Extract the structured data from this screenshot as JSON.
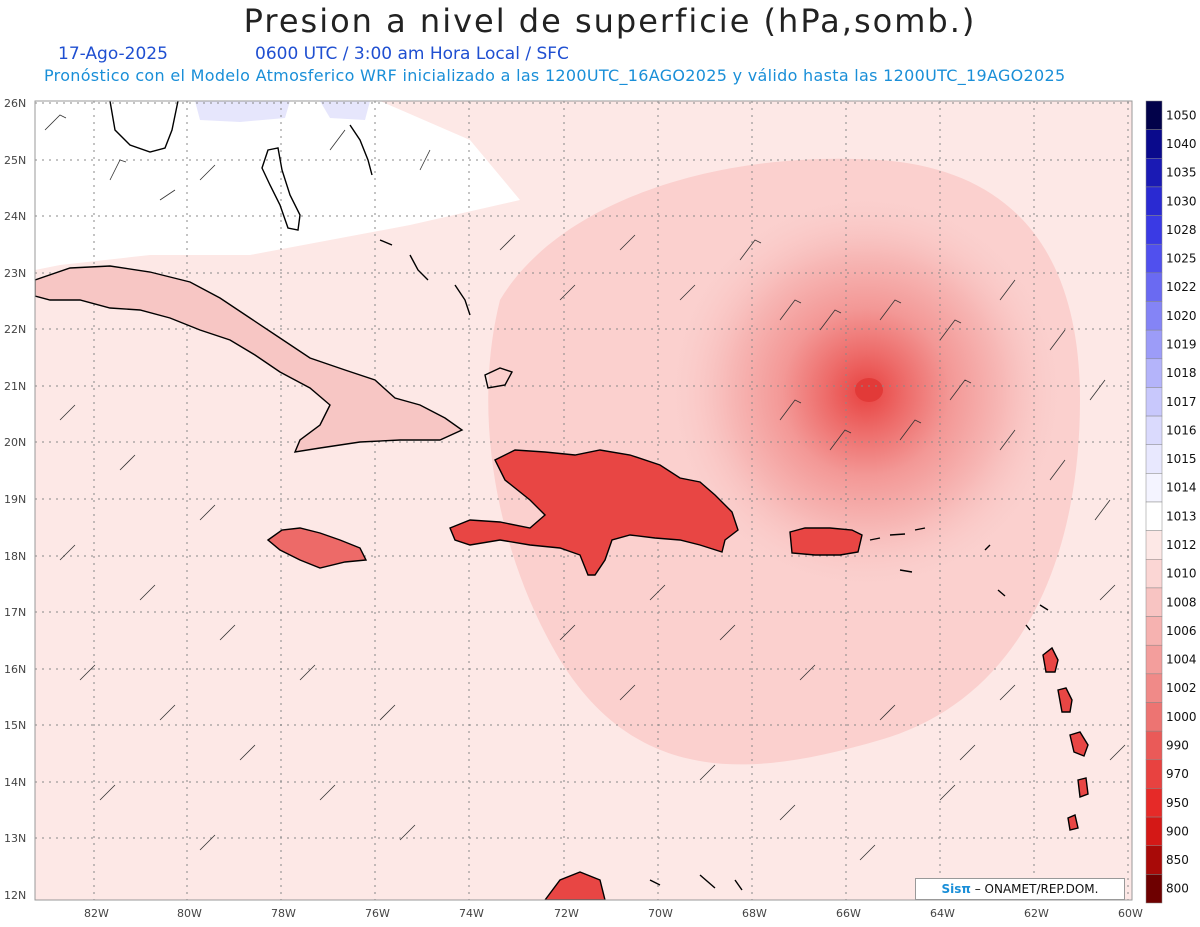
{
  "title": "Presion a nivel de superficie (hPa,somb.)",
  "date": "17-Ago-2025",
  "time_info": "0600 UTC / 3:00 am Hora Local / SFC",
  "forecast_info": "Pronóstico con el Modelo Atmosferico WRF inicializado a las 1200UTC_16AGO2025 y válido hasta las  1200UTC_19AGO2025",
  "credit": {
    "brand": "Sisπ",
    "text": " – ONAMET/REP.DOM."
  },
  "axes": {
    "lat_labels": [
      "26N",
      "25N",
      "24N",
      "23N",
      "22N",
      "21N",
      "20N",
      "19N",
      "18N",
      "17N",
      "16N",
      "15N",
      "14N",
      "13N",
      "12N"
    ],
    "lon_labels": [
      "82W",
      "80W",
      "78W",
      "76W",
      "74W",
      "72W",
      "70W",
      "68W",
      "66W",
      "64W",
      "62W",
      "60W"
    ]
  },
  "colorbar": {
    "levels": [
      "1050",
      "1040",
      "1035",
      "1030",
      "1028",
      "1025",
      "1022",
      "1020",
      "1019",
      "1018",
      "1017",
      "1016",
      "1015",
      "1014",
      "1013",
      "1012",
      "1010",
      "1008",
      "1006",
      "1004",
      "1002",
      "1000",
      "990",
      "970",
      "950",
      "900",
      "850",
      "800"
    ],
    "colors": [
      "#02024a",
      "#0a0a8c",
      "#1a1ab4",
      "#2a2ad2",
      "#3a3ae4",
      "#5050ee",
      "#6a6af2",
      "#8484f6",
      "#9c9cf8",
      "#b4b4fa",
      "#c8c8fc",
      "#dadafd",
      "#e8e8fe",
      "#f4f4ff",
      "#ffffff",
      "#fde8e6",
      "#fbd6d4",
      "#f8c4c2",
      "#f6b2b0",
      "#f39e9c",
      "#f08a88",
      "#ed7472",
      "#ea5a58",
      "#e84240",
      "#e62a28",
      "#d41816",
      "#a80a08",
      "#6e0000"
    ]
  },
  "pressure_center": {
    "lat": 21.0,
    "lon": -65.5,
    "label": "low"
  }
}
